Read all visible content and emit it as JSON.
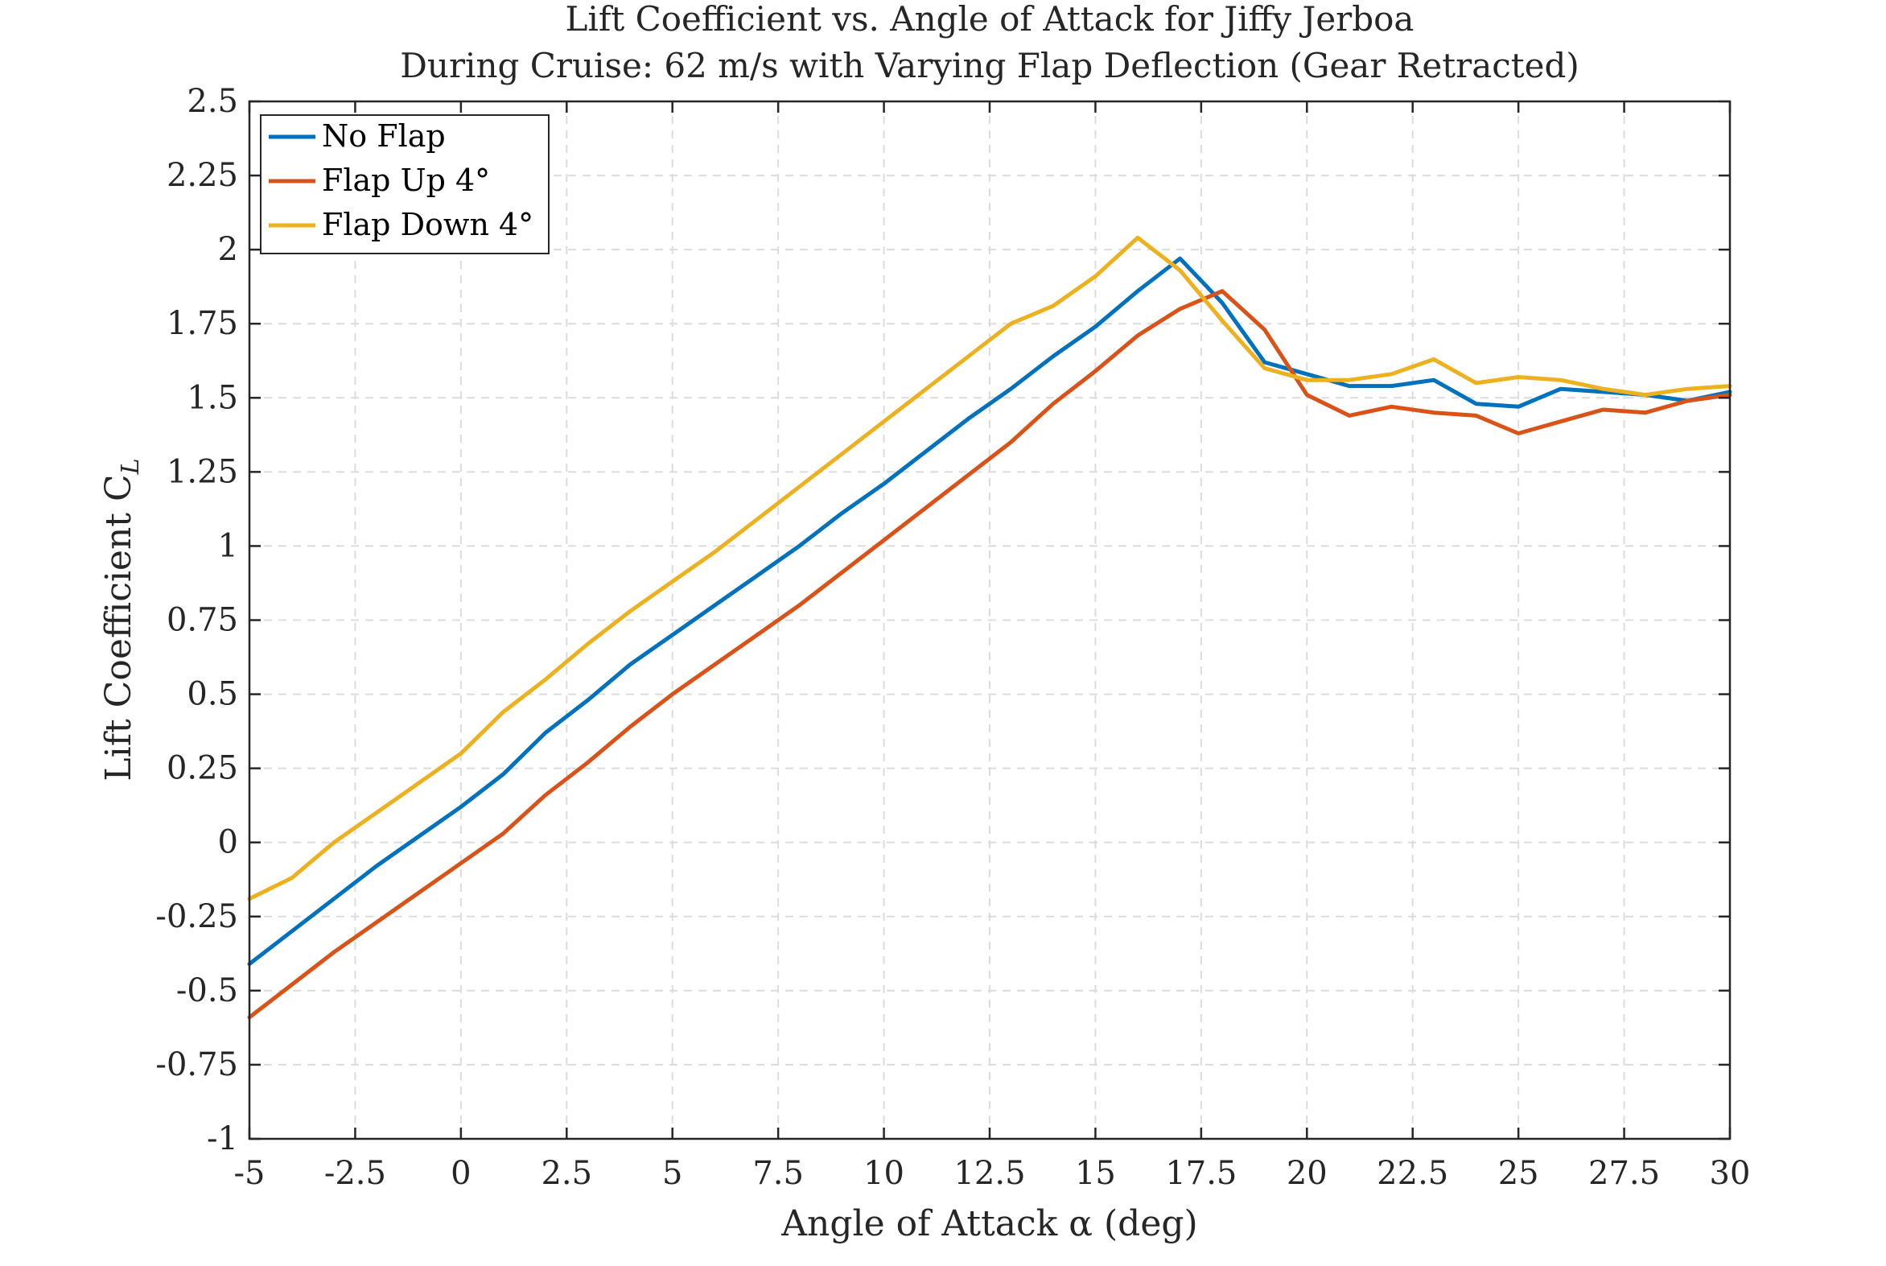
{
  "chart_data": {
    "type": "line",
    "title": "Lift Coefficient vs. Angle of Attack for Jiffy Jerboa",
    "subtitle": "During Cruise: 62 m/s with Varying Flap Deflection (Gear Retracted)",
    "xlabel": "Angle of Attack α (deg)",
    "ylabel": "Lift Coefficient C",
    "ylabel_sub": "L",
    "xlim": [
      -5,
      30
    ],
    "ylim": [
      -1,
      2.5
    ],
    "xticks": [
      -5,
      -2.5,
      0,
      2.5,
      5,
      7.5,
      10,
      12.5,
      15,
      17.5,
      20,
      22.5,
      25,
      27.5,
      30
    ],
    "xtick_labels": [
      "-5",
      "-2.5",
      "0",
      "2.5",
      "5",
      "7.5",
      "10",
      "12.5",
      "15",
      "17.5",
      "20",
      "22.5",
      "25",
      "27.5",
      "30"
    ],
    "yticks": [
      -1,
      -0.75,
      -0.5,
      -0.25,
      0,
      0.25,
      0.5,
      0.75,
      1,
      1.25,
      1.5,
      1.75,
      2,
      2.25,
      2.5
    ],
    "ytick_labels": [
      "-1",
      "-0.75",
      "-0.5",
      "-0.25",
      "0",
      "0.25",
      "0.5",
      "0.75",
      "1",
      "1.25",
      "1.5",
      "1.75",
      "2",
      "2.25",
      "2.5"
    ],
    "grid": true,
    "legend_position": "top-left",
    "x": [
      -5,
      -4,
      -3,
      -2,
      -1,
      0,
      1,
      2,
      3,
      4,
      5,
      6,
      7,
      8,
      9,
      10,
      11,
      12,
      13,
      14,
      15,
      16,
      17,
      18,
      19,
      20,
      21,
      22,
      23,
      24,
      25,
      26,
      27,
      28,
      29,
      30
    ],
    "series": [
      {
        "name": "No Flap",
        "color": "#0072BD",
        "values": [
          -0.41,
          -0.3,
          -0.19,
          -0.08,
          0.02,
          0.12,
          0.23,
          0.37,
          0.48,
          0.6,
          0.7,
          0.8,
          0.9,
          1.0,
          1.11,
          1.21,
          1.32,
          1.43,
          1.53,
          1.64,
          1.74,
          1.86,
          1.97,
          1.82,
          1.62,
          1.58,
          1.54,
          1.54,
          1.56,
          1.48,
          1.47,
          1.53,
          1.52,
          1.51,
          1.49,
          1.52
        ]
      },
      {
        "name": "Flap Up 4°",
        "color": "#D95319",
        "values": [
          -0.59,
          -0.48,
          -0.37,
          -0.27,
          -0.17,
          -0.07,
          0.03,
          0.16,
          0.27,
          0.39,
          0.5,
          0.6,
          0.7,
          0.8,
          0.91,
          1.02,
          1.13,
          1.24,
          1.35,
          1.48,
          1.59,
          1.71,
          1.8,
          1.86,
          1.73,
          1.51,
          1.44,
          1.47,
          1.45,
          1.44,
          1.38,
          1.42,
          1.46,
          1.45,
          1.49,
          1.51
        ]
      },
      {
        "name": "Flap Down 4°",
        "color": "#EDB120",
        "values": [
          -0.19,
          -0.12,
          0.0,
          0.1,
          0.2,
          0.3,
          0.44,
          0.55,
          0.67,
          0.78,
          0.88,
          0.98,
          1.09,
          1.2,
          1.31,
          1.42,
          1.53,
          1.64,
          1.75,
          1.81,
          1.91,
          2.04,
          1.93,
          1.76,
          1.6,
          1.56,
          1.56,
          1.58,
          1.63,
          1.55,
          1.57,
          1.56,
          1.53,
          1.51,
          1.53,
          1.54
        ]
      }
    ]
  }
}
